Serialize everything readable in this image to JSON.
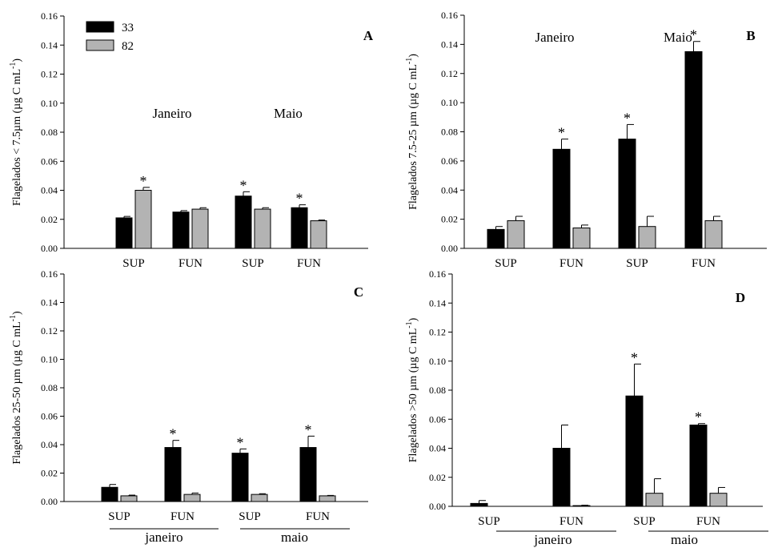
{
  "legend": [
    {
      "label": "33",
      "color": "#000000"
    },
    {
      "label": "82",
      "color": "#b3b3b3"
    }
  ],
  "chart_data": [
    {
      "type": "bar",
      "panel": "A",
      "ylabel": "Flagelados < 7.5µm (µg C mL-1)",
      "ylim": [
        0,
        0.16
      ],
      "yticks": [
        "0.00",
        "0.02",
        "0.04",
        "0.06",
        "0.08",
        "0.10",
        "0.12",
        "0.14",
        "0.16"
      ],
      "categories": [
        "SUP",
        "FUN",
        "SUP",
        "FUN"
      ],
      "group_labels": [
        "Janeiro",
        "Maio"
      ],
      "group_labels_style": "inside",
      "series": [
        {
          "name": "33",
          "color": "#000000",
          "values": [
            0.021,
            0.025,
            0.036,
            0.028
          ],
          "errors": [
            0.001,
            0.001,
            0.003,
            0.002
          ]
        },
        {
          "name": "82",
          "color": "#b3b3b3",
          "values": [
            0.04,
            0.027,
            0.027,
            0.019
          ],
          "errors": [
            0.002,
            0.001,
            0.001,
            0.0005
          ]
        }
      ],
      "significance": [
        {
          "category": 0,
          "series": 1,
          "mark": "*"
        },
        {
          "category": 2,
          "series": 0,
          "mark": "*"
        },
        {
          "category": 3,
          "series": 0,
          "mark": "*"
        }
      ]
    },
    {
      "type": "bar",
      "panel": "B",
      "ylabel": "Flagelados 7.5-25 µm (µg C mL-1)",
      "ylim": [
        0,
        0.16
      ],
      "yticks": [
        "0.00",
        "0.02",
        "0.04",
        "0.06",
        "0.08",
        "0.10",
        "0.12",
        "0.14",
        "0.16"
      ],
      "categories": [
        "SUP",
        "FUN",
        "SUP",
        "FUN"
      ],
      "group_labels": [
        "Janeiro",
        "Maio"
      ],
      "group_labels_style": "inside",
      "series": [
        {
          "name": "33",
          "color": "#000000",
          "values": [
            0.013,
            0.068,
            0.075,
            0.135
          ],
          "errors": [
            0.002,
            0.007,
            0.01,
            0.007
          ]
        },
        {
          "name": "82",
          "color": "#b3b3b3",
          "values": [
            0.019,
            0.014,
            0.015,
            0.019
          ],
          "errors": [
            0.003,
            0.002,
            0.007,
            0.003
          ]
        }
      ],
      "significance": [
        {
          "category": 1,
          "series": 0,
          "mark": "*"
        },
        {
          "category": 2,
          "series": 0,
          "mark": "*"
        },
        {
          "category": 3,
          "series": 0,
          "mark": "*"
        }
      ]
    },
    {
      "type": "bar",
      "panel": "C",
      "ylabel": "Flagelados 25-50 µm (µg C mL-1)",
      "ylim": [
        0,
        0.16
      ],
      "yticks": [
        "0.00",
        "0.02",
        "0.04",
        "0.06",
        "0.08",
        "0.10",
        "0.12",
        "0.14",
        "0.16"
      ],
      "categories": [
        "SUP",
        "FUN",
        "SUP",
        "FUN"
      ],
      "group_labels": [
        "janeiro",
        "maio"
      ],
      "group_labels_style": "underlined",
      "series": [
        {
          "name": "33",
          "color": "#000000",
          "values": [
            0.01,
            0.038,
            0.034,
            0.038
          ],
          "errors": [
            0.002,
            0.005,
            0.003,
            0.008
          ]
        },
        {
          "name": "82",
          "color": "#b3b3b3",
          "values": [
            0.004,
            0.005,
            0.005,
            0.004
          ],
          "errors": [
            0.0005,
            0.001,
            0.0005,
            0.0003
          ]
        }
      ],
      "significance": [
        {
          "category": 1,
          "series": 0,
          "mark": "*"
        },
        {
          "category": 2,
          "series": 0,
          "mark": "*"
        },
        {
          "category": 3,
          "series": 0,
          "mark": "*"
        }
      ]
    },
    {
      "type": "bar",
      "panel": "D",
      "ylabel": "Flagelados >50 µm (µg C mL-1)",
      "ylim": [
        0,
        0.16
      ],
      "yticks": [
        "0.00",
        "0.02",
        "0.04",
        "0.06",
        "0.08",
        "0.10",
        "0.12",
        "0.14",
        "0.16"
      ],
      "categories": [
        "SUP",
        "FUN",
        "SUP",
        "FUN"
      ],
      "group_labels": [
        "janeiro",
        "maio"
      ],
      "group_labels_style": "underlined",
      "series": [
        {
          "name": "33",
          "color": "#000000",
          "values": [
            0.002,
            0.04,
            0.076,
            0.056
          ],
          "errors": [
            0.002,
            0.016,
            0.022,
            0.001
          ]
        },
        {
          "name": "82",
          "color": "#b3b3b3",
          "values": [
            0.0,
            0.0005,
            0.009,
            0.009
          ],
          "errors": [
            0.0,
            0.0003,
            0.01,
            0.004
          ]
        }
      ],
      "significance": [
        {
          "category": 2,
          "series": 0,
          "mark": "*"
        },
        {
          "category": 3,
          "series": 0,
          "mark": "*"
        }
      ]
    }
  ]
}
